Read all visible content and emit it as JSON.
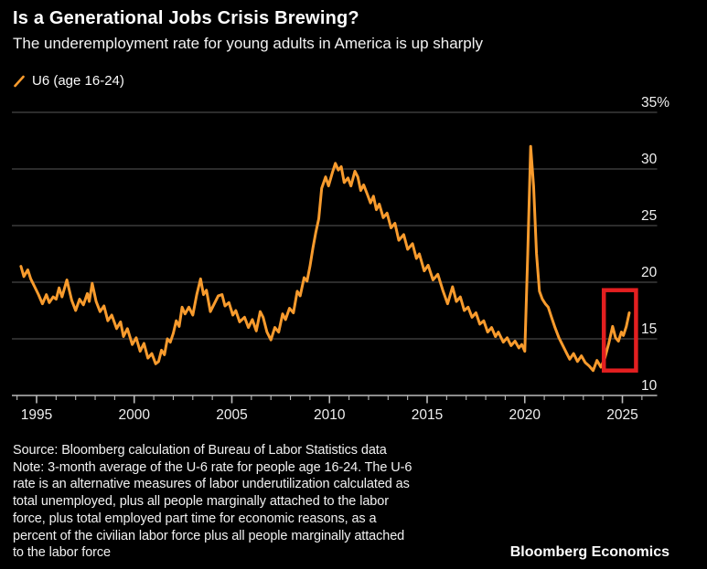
{
  "header": {
    "title": "Is a Generational Jobs Crisis Brewing?",
    "subtitle": "The underemployment rate for young adults in America is up sharply"
  },
  "legend": {
    "marker_icon": "orange-slash-icon",
    "series_label": "U6 (age 16-24)"
  },
  "colors": {
    "background": "#000000",
    "line_orange": "#F89B2D",
    "highlight_red": "#E31F20",
    "gridline_gray": "#575757",
    "axis_gray": "#BBBBBB",
    "text_white": "#FFFFFF"
  },
  "chart_data": {
    "type": "line",
    "title": "Is a Generational Jobs Crisis Brewing?",
    "subtitle": "The underemployment rate for young adults in America is up sharply",
    "xlabel": "",
    "ylabel": "",
    "grid": "horizontal",
    "legend_position": "top-left",
    "xlim": [
      1993.8,
      2026.8
    ],
    "ylim": [
      10,
      36
    ],
    "x_ticks_major": [
      1995,
      2000,
      2005,
      2010,
      2015,
      2020,
      2025
    ],
    "x_ticks_minor_range": [
      1994,
      2026
    ],
    "y_ticks": [
      {
        "value": 35,
        "label": "35%"
      },
      {
        "value": 30,
        "label": "30"
      },
      {
        "value": 25,
        "label": "25"
      },
      {
        "value": 20,
        "label": "20"
      },
      {
        "value": 15,
        "label": "15"
      },
      {
        "value": 10,
        "label": "10"
      }
    ],
    "highlight_box": {
      "year_range": [
        2024.05,
        2025.7
      ],
      "value_range": [
        12.2,
        19.3
      ],
      "color": "#E31F20",
      "meaning": "recent sharp rise in youth underemployment"
    },
    "series": [
      {
        "name": "U6 (age 16-24)",
        "color": "#F89B2D",
        "unit": "%",
        "points": [
          [
            1994.2,
            21.4
          ],
          [
            1994.35,
            20.5
          ],
          [
            1994.55,
            21.1
          ],
          [
            1994.7,
            20.3
          ],
          [
            1994.9,
            19.6
          ],
          [
            1995.1,
            18.9
          ],
          [
            1995.3,
            18.1
          ],
          [
            1995.5,
            18.9
          ],
          [
            1995.65,
            18.2
          ],
          [
            1995.85,
            18.7
          ],
          [
            1996.0,
            18.5
          ],
          [
            1996.15,
            19.5
          ],
          [
            1996.3,
            18.7
          ],
          [
            1996.55,
            20.2
          ],
          [
            1996.8,
            18.4
          ],
          [
            1997.0,
            17.5
          ],
          [
            1997.2,
            18.5
          ],
          [
            1997.4,
            18.0
          ],
          [
            1997.6,
            19.0
          ],
          [
            1997.7,
            18.3
          ],
          [
            1997.85,
            19.9
          ],
          [
            1998.05,
            18.3
          ],
          [
            1998.25,
            17.4
          ],
          [
            1998.45,
            17.9
          ],
          [
            1998.65,
            16.6
          ],
          [
            1998.85,
            17.1
          ],
          [
            1999.1,
            15.9
          ],
          [
            1999.3,
            16.5
          ],
          [
            1999.45,
            15.2
          ],
          [
            1999.65,
            15.9
          ],
          [
            1999.9,
            14.5
          ],
          [
            2000.1,
            15.1
          ],
          [
            2000.3,
            13.9
          ],
          [
            2000.5,
            14.6
          ],
          [
            2000.7,
            13.3
          ],
          [
            2000.9,
            13.7
          ],
          [
            2001.1,
            12.8
          ],
          [
            2001.25,
            13.0
          ],
          [
            2001.4,
            14.0
          ],
          [
            2001.55,
            13.6
          ],
          [
            2001.7,
            15.0
          ],
          [
            2001.85,
            14.7
          ],
          [
            2002.0,
            15.5
          ],
          [
            2002.15,
            16.6
          ],
          [
            2002.3,
            16.1
          ],
          [
            2002.45,
            17.8
          ],
          [
            2002.6,
            17.2
          ],
          [
            2002.8,
            17.8
          ],
          [
            2003.0,
            17.1
          ],
          [
            2003.2,
            18.9
          ],
          [
            2003.4,
            20.3
          ],
          [
            2003.55,
            18.9
          ],
          [
            2003.7,
            19.3
          ],
          [
            2003.9,
            17.4
          ],
          [
            2004.1,
            18.1
          ],
          [
            2004.3,
            18.8
          ],
          [
            2004.5,
            18.9
          ],
          [
            2004.65,
            17.9
          ],
          [
            2004.85,
            18.2
          ],
          [
            2005.05,
            17.1
          ],
          [
            2005.2,
            17.5
          ],
          [
            2005.4,
            16.5
          ],
          [
            2005.65,
            16.9
          ],
          [
            2005.85,
            16.0
          ],
          [
            2006.05,
            16.7
          ],
          [
            2006.25,
            15.7
          ],
          [
            2006.45,
            17.4
          ],
          [
            2006.6,
            16.9
          ],
          [
            2006.8,
            15.6
          ],
          [
            2007.0,
            14.9
          ],
          [
            2007.2,
            16.0
          ],
          [
            2007.4,
            15.6
          ],
          [
            2007.6,
            17.2
          ],
          [
            2007.75,
            16.7
          ],
          [
            2007.95,
            17.7
          ],
          [
            2008.15,
            17.3
          ],
          [
            2008.35,
            19.2
          ],
          [
            2008.5,
            18.8
          ],
          [
            2008.7,
            20.4
          ],
          [
            2008.85,
            20.1
          ],
          [
            2009.0,
            21.4
          ],
          [
            2009.15,
            23.0
          ],
          [
            2009.3,
            24.4
          ],
          [
            2009.45,
            25.6
          ],
          [
            2009.6,
            28.3
          ],
          [
            2009.8,
            29.3
          ],
          [
            2009.95,
            28.5
          ],
          [
            2010.15,
            29.7
          ],
          [
            2010.3,
            30.5
          ],
          [
            2010.45,
            29.9
          ],
          [
            2010.6,
            30.2
          ],
          [
            2010.75,
            28.8
          ],
          [
            2010.95,
            29.2
          ],
          [
            2011.1,
            28.5
          ],
          [
            2011.3,
            29.8
          ],
          [
            2011.45,
            29.3
          ],
          [
            2011.6,
            28.1
          ],
          [
            2011.75,
            28.6
          ],
          [
            2011.95,
            27.7
          ],
          [
            2012.1,
            27.0
          ],
          [
            2012.25,
            27.6
          ],
          [
            2012.4,
            26.4
          ],
          [
            2012.55,
            26.9
          ],
          [
            2012.75,
            25.7
          ],
          [
            2012.95,
            26.1
          ],
          [
            2013.15,
            24.8
          ],
          [
            2013.35,
            25.2
          ],
          [
            2013.55,
            23.7
          ],
          [
            2013.8,
            24.2
          ],
          [
            2014.0,
            22.9
          ],
          [
            2014.25,
            23.4
          ],
          [
            2014.45,
            22.1
          ],
          [
            2014.6,
            22.5
          ],
          [
            2014.85,
            21.0
          ],
          [
            2015.05,
            21.5
          ],
          [
            2015.3,
            20.2
          ],
          [
            2015.55,
            20.7
          ],
          [
            2015.8,
            19.3
          ],
          [
            2016.05,
            18.1
          ],
          [
            2016.3,
            19.6
          ],
          [
            2016.5,
            18.3
          ],
          [
            2016.7,
            18.7
          ],
          [
            2016.9,
            17.5
          ],
          [
            2017.1,
            17.8
          ],
          [
            2017.3,
            16.9
          ],
          [
            2017.5,
            17.3
          ],
          [
            2017.7,
            16.3
          ],
          [
            2017.9,
            16.6
          ],
          [
            2018.1,
            15.6
          ],
          [
            2018.3,
            16.0
          ],
          [
            2018.5,
            15.2
          ],
          [
            2018.65,
            15.6
          ],
          [
            2018.9,
            14.7
          ],
          [
            2019.1,
            15.1
          ],
          [
            2019.3,
            14.4
          ],
          [
            2019.5,
            14.8
          ],
          [
            2019.7,
            14.2
          ],
          [
            2019.85,
            14.5
          ],
          [
            2020.0,
            13.9
          ],
          [
            2020.15,
            22.5
          ],
          [
            2020.3,
            32.0
          ],
          [
            2020.45,
            28.5
          ],
          [
            2020.6,
            22.5
          ],
          [
            2020.75,
            19.2
          ],
          [
            2020.9,
            18.5
          ],
          [
            2021.05,
            18.1
          ],
          [
            2021.2,
            17.8
          ],
          [
            2021.35,
            17.0
          ],
          [
            2021.55,
            16.0
          ],
          [
            2021.75,
            15.1
          ],
          [
            2021.95,
            14.4
          ],
          [
            2022.15,
            13.7
          ],
          [
            2022.3,
            13.2
          ],
          [
            2022.5,
            13.7
          ],
          [
            2022.7,
            13.0
          ],
          [
            2022.9,
            13.5
          ],
          [
            2023.1,
            12.9
          ],
          [
            2023.3,
            12.6
          ],
          [
            2023.5,
            12.2
          ],
          [
            2023.7,
            13.1
          ],
          [
            2023.9,
            12.5
          ],
          [
            2024.1,
            13.3
          ],
          [
            2024.3,
            14.6
          ],
          [
            2024.5,
            16.1
          ],
          [
            2024.65,
            15.1
          ],
          [
            2024.8,
            14.8
          ],
          [
            2024.95,
            15.6
          ],
          [
            2025.05,
            15.3
          ],
          [
            2025.2,
            16.1
          ],
          [
            2025.35,
            17.3
          ]
        ]
      }
    ]
  },
  "footer": {
    "note_lines": [
      "Source: Bloomberg calculation of Bureau of Labor Statistics data",
      "Note: 3-month average of the U-6 rate for people age 16-24. The U-6",
      "rate is an alternative measures of labor underutilization calculated as",
      "total unemployed, plus all people marginally attached to the labor",
      "force, plus total employed part time for economic reasons, as a",
      "percent of the civilian labor force plus all people marginally attached",
      "to the labor force"
    ],
    "brand": "Bloomberg Economics"
  }
}
